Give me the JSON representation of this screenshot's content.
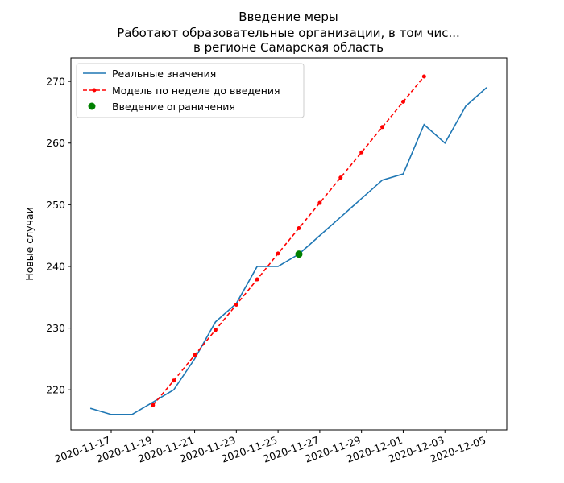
{
  "chart_data": {
    "type": "line",
    "title": [
      "Введение меры",
      "Работают образовательные организации, в том чис...",
      "в регионе Самарская область"
    ],
    "xlabel": "",
    "ylabel": "Новые случаи",
    "ylim": [
      213.5,
      273.8
    ],
    "yticks": [
      220,
      230,
      240,
      250,
      260,
      270
    ],
    "xticks": [
      "2020-11-17",
      "2020-11-19",
      "2020-11-21",
      "2020-11-23",
      "2020-11-25",
      "2020-11-27",
      "2020-11-29",
      "2020-12-01",
      "2020-12-03",
      "2020-12-05"
    ],
    "grid": false,
    "legend_position": "top-left",
    "series": [
      {
        "name": "Реальные значения",
        "color": "#1f77b4",
        "style": "solid",
        "x": [
          "2020-11-16",
          "2020-11-17",
          "2020-11-18",
          "2020-11-19",
          "2020-11-20",
          "2020-11-21",
          "2020-11-22",
          "2020-11-23",
          "2020-11-24",
          "2020-11-25",
          "2020-11-26",
          "2020-11-27",
          "2020-11-28",
          "2020-11-29",
          "2020-11-30",
          "2020-12-01",
          "2020-12-02",
          "2020-12-03",
          "2020-12-04",
          "2020-12-05"
        ],
        "values": [
          217,
          216,
          216,
          218,
          220,
          225,
          231,
          234,
          240,
          240,
          242,
          245,
          248,
          251,
          254,
          255,
          263,
          260,
          266,
          269
        ]
      },
      {
        "name": "Модель по неделе до введения",
        "color": "#ff0000",
        "style": "dashed-dots",
        "x": [
          "2020-11-19",
          "2020-11-20",
          "2020-11-21",
          "2020-11-22",
          "2020-11-23",
          "2020-11-24",
          "2020-11-25",
          "2020-11-26",
          "2020-11-27",
          "2020-11-28",
          "2020-11-29",
          "2020-11-30",
          "2020-12-01",
          "2020-12-02"
        ],
        "values": [
          217.5,
          221.5,
          225.6,
          229.7,
          233.8,
          237.9,
          242.1,
          246.2,
          250.3,
          254.4,
          258.5,
          262.6,
          266.7,
          270.8
        ]
      },
      {
        "name": "Введение ограничения",
        "color": "#008000",
        "style": "marker",
        "x": [
          "2020-11-26"
        ],
        "values": [
          242
        ]
      }
    ]
  }
}
